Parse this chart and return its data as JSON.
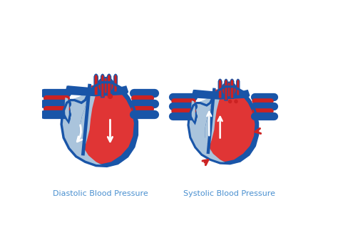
{
  "label_left": "Diastolic Blood Pressure",
  "label_right": "Systolic Blood Pressure",
  "bg_color": "#ffffff",
  "blue_dark": "#1955a8",
  "blue_light": "#aac4dc",
  "red_heart": "#e03535",
  "red_dark": "#cc2222",
  "white_col": "#ffffff",
  "label_color": "#4a90d0",
  "label_fontsize": 8.0,
  "fig_width": 4.74,
  "fig_height": 3.16,
  "dpi": 100
}
